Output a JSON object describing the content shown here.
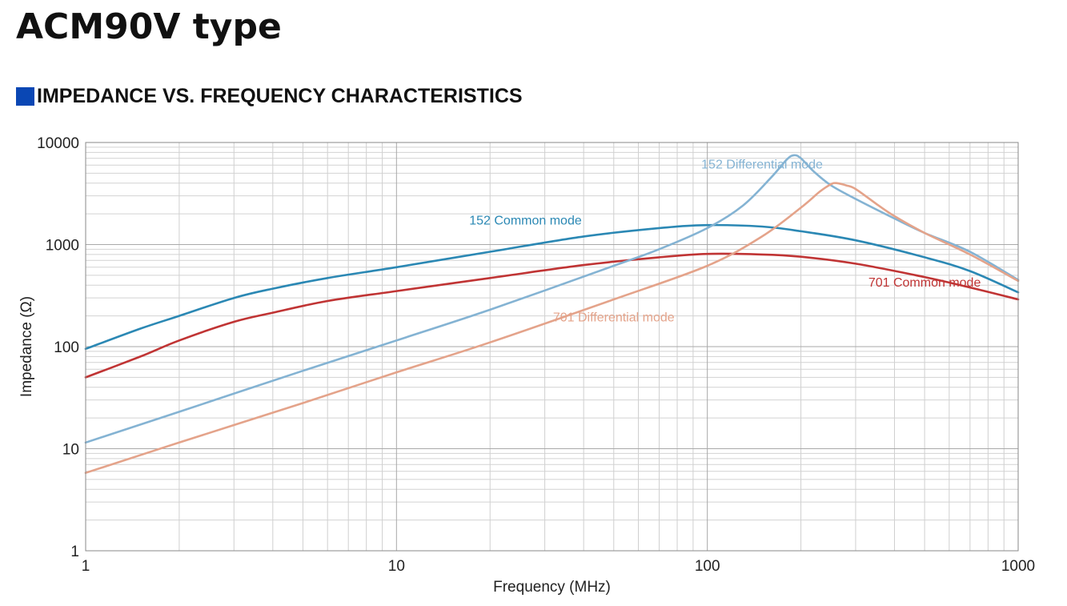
{
  "page": {
    "title": "ACM90V type",
    "section_heading": "IMPEDANCE VS. FREQUENCY CHARACTERISTICS",
    "section_marker_color": "#0a47b4"
  },
  "chart_data": {
    "type": "line",
    "title": "",
    "xlabel": "Frequency (MHz)",
    "ylabel": "Impedance (Ω)",
    "x_scale": "log",
    "y_scale": "log",
    "xlim": [
      1,
      1000
    ],
    "ylim": [
      1,
      10000
    ],
    "x_ticks": [
      "1",
      "10",
      "100",
      "1000"
    ],
    "y_ticks": [
      "1",
      "10",
      "100",
      "1000",
      "10000"
    ],
    "grid": true,
    "series": [
      {
        "name": "152 Common mode",
        "color": "#2b88b4",
        "x": [
          1,
          1.5,
          2,
          3,
          4,
          6,
          10,
          20,
          40,
          70,
          100,
          150,
          200,
          300,
          500,
          700,
          1000
        ],
        "y": [
          95,
          150,
          200,
          300,
          370,
          470,
          600,
          850,
          1200,
          1450,
          1550,
          1500,
          1350,
          1100,
          750,
          550,
          340
        ]
      },
      {
        "name": "701 Common mode",
        "color": "#c03434",
        "x": [
          1,
          1.5,
          2,
          3,
          4,
          6,
          10,
          20,
          40,
          70,
          100,
          150,
          200,
          300,
          500,
          700,
          1000
        ],
        "y": [
          50,
          80,
          115,
          175,
          215,
          280,
          350,
          470,
          630,
          750,
          810,
          800,
          760,
          650,
          480,
          380,
          290
        ]
      },
      {
        "name": "152 Differential mode",
        "color": "#84b3d3",
        "x": [
          1,
          2,
          5,
          10,
          20,
          50,
          70,
          100,
          130,
          160,
          180,
          190,
          200,
          220,
          250,
          300,
          400,
          500,
          700,
          1000
        ],
        "y": [
          11.5,
          23,
          58,
          115,
          230,
          620,
          900,
          1450,
          2400,
          4500,
          6800,
          7500,
          7000,
          5200,
          3800,
          2800,
          1800,
          1300,
          850,
          450
        ]
      },
      {
        "name": "701 Differential mode",
        "color": "#e4a38a",
        "x": [
          1,
          2,
          5,
          10,
          20,
          50,
          100,
          150,
          200,
          230,
          250,
          260,
          280,
          300,
          350,
          400,
          500,
          700,
          1000
        ],
        "y": [
          5.8,
          11.5,
          28,
          56,
          110,
          290,
          620,
          1200,
          2300,
          3300,
          3900,
          4000,
          3800,
          3500,
          2500,
          1900,
          1300,
          800,
          440
        ]
      }
    ],
    "annotations": [
      {
        "text": "152 Differential mode",
        "series": "152 Differential mode",
        "x": 150,
        "y": 6000
      },
      {
        "text": "152 Common mode",
        "series": "152 Common mode",
        "x": 26,
        "y": 1700
      },
      {
        "text": "701 Common mode",
        "series": "701 Common mode",
        "x": 500,
        "y": 420
      },
      {
        "text": "701 Differential mode",
        "series": "701 Differential mode",
        "x": 50,
        "y": 190
      }
    ]
  }
}
